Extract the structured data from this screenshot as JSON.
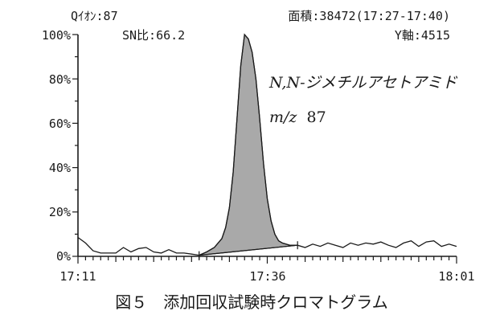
{
  "chart_data": {
    "type": "line",
    "header": {
      "ion": "Qｲｵﾝ:87",
      "sn": "SN比:66.2",
      "area": "面積:38472(17:27-17:40)",
      "yaxis": "Y軸:4515"
    },
    "annotation": {
      "compound": "N,N-ジメチルアセトアミド",
      "mz_label": "m/z",
      "mz_value": "87"
    },
    "yticks": [
      "0%",
      "20%",
      "40%",
      "60%",
      "80%",
      "100%"
    ],
    "ylim": [
      0,
      100
    ],
    "xlim_min": [
      0,
      50
    ],
    "xticks": [
      "17:11",
      "17:36",
      "18:01"
    ],
    "xtick_min": [
      0,
      25,
      50
    ],
    "integration": {
      "start": "17:27",
      "end": "17:40",
      "start_min": 16,
      "end_min": 29
    },
    "series": [
      {
        "x": [
          0,
          1,
          2,
          3,
          4,
          5,
          6,
          7,
          8,
          9,
          10,
          11,
          12,
          13,
          14,
          15,
          16,
          17,
          18,
          19,
          19.5,
          20,
          20.5,
          21,
          21.5,
          22,
          22.5,
          23,
          23.5,
          24,
          24.5,
          25,
          25.5,
          26,
          26.5,
          27,
          28,
          29,
          30,
          31,
          32,
          33,
          34,
          35,
          36,
          37,
          38,
          39,
          40,
          41,
          42,
          43,
          44,
          45,
          46,
          47,
          48,
          49,
          50
        ],
        "y": [
          8.5,
          6,
          2.5,
          1.5,
          1.5,
          1.5,
          4,
          2,
          3.5,
          4,
          2,
          1.5,
          3,
          1.5,
          1.5,
          1,
          0.5,
          2,
          4,
          8,
          13,
          22,
          38,
          62,
          86,
          100,
          98,
          92,
          80,
          62,
          42,
          26,
          16,
          10,
          7,
          6,
          5,
          5,
          4,
          5.5,
          4.5,
          6,
          5,
          4,
          6,
          5,
          6,
          5.5,
          6.5,
          5,
          4,
          6,
          7,
          4.5,
          6.5,
          7,
          4.5,
          5.5,
          4.5
        ]
      }
    ],
    "caption": "図５　添加回収試験時クロマトグラム"
  }
}
